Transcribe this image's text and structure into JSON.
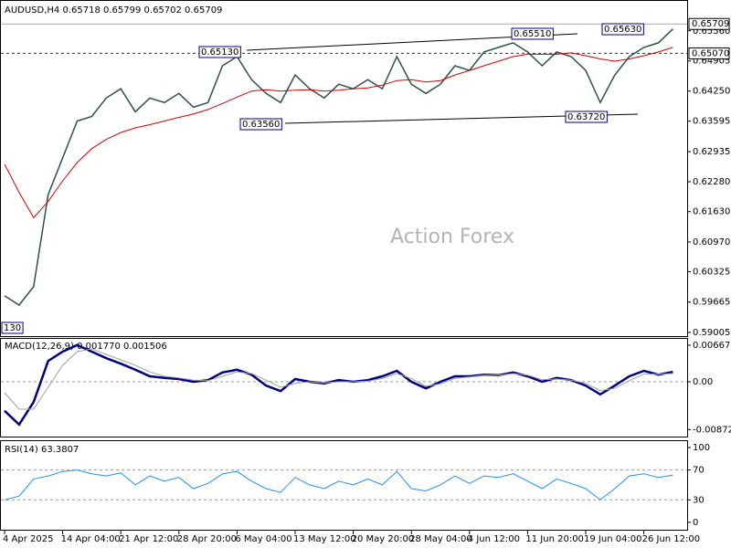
{
  "chart_data": [
    {
      "type": "line",
      "title": "AUDUSD,H4 0.65718 0.65799 0.65702 0.65709",
      "watermark": "Action Forex",
      "categories": [
        "4 Apr 2025",
        null,
        null,
        null,
        "14 Apr 04:00",
        null,
        null,
        null,
        "21 Apr 12:00",
        null,
        null,
        null,
        "28 Apr 20:00",
        null,
        null,
        null,
        "6 May 04:00",
        null,
        null,
        null,
        "13 May 12:00",
        null,
        null,
        null,
        "20 May 20:00",
        null,
        null,
        null,
        "28 May 04:00",
        null,
        null,
        null,
        "4 Jun 12:00",
        null,
        null,
        null,
        "11 Jun 20:00",
        null,
        null,
        null,
        "19 Jun 04:00",
        null,
        null,
        null,
        "26 Jun 12:00",
        null,
        null
      ],
      "series": [
        {
          "name": "AUDUSD",
          "color": "#2f4f4f",
          "values": [
            0.598,
            0.596,
            0.6,
            0.62,
            0.628,
            0.636,
            0.637,
            0.641,
            0.643,
            0.638,
            0.641,
            0.64,
            0.642,
            0.639,
            0.64,
            0.648,
            0.65,
            0.645,
            0.642,
            0.64,
            0.646,
            0.643,
            0.641,
            0.644,
            0.643,
            0.645,
            0.643,
            0.65,
            0.644,
            0.642,
            0.644,
            0.648,
            0.647,
            0.651,
            0.652,
            0.653,
            0.651,
            0.648,
            0.651,
            0.65,
            0.647,
            0.64,
            0.646,
            0.65,
            0.652,
            0.653,
            0.656
          ]
        },
        {
          "name": "MA",
          "color": "#d40000",
          "values": [
            0.6266,
            0.6205,
            0.615,
            0.6185,
            0.623,
            0.627,
            0.63,
            0.632,
            0.6335,
            0.6345,
            0.6352,
            0.636,
            0.6368,
            0.6375,
            0.6385,
            0.6398,
            0.6412,
            0.6425,
            0.6428,
            0.6425,
            0.6427,
            0.6428,
            0.6425,
            0.6427,
            0.643,
            0.6432,
            0.6438,
            0.6448,
            0.645,
            0.6445,
            0.6448,
            0.646,
            0.647,
            0.648,
            0.649,
            0.65,
            0.6505,
            0.6505,
            0.6505,
            0.6508,
            0.6502,
            0.6495,
            0.649,
            0.6495,
            0.6502,
            0.651,
            0.652
          ]
        }
      ],
      "ylim": [
        0.58925,
        0.6623
      ],
      "yticks": [
        {
          "value": 0.6556,
          "label": "0.65560"
        },
        {
          "value": 0.64905,
          "label": "0.64905"
        },
        {
          "value": 0.6425,
          "label": "0.64250"
        },
        {
          "value": 0.63595,
          "label": "0.63595"
        },
        {
          "value": 0.62935,
          "label": "0.62935"
        },
        {
          "value": 0.6228,
          "label": "0.62280"
        },
        {
          "value": 0.6163,
          "label": "0.61630"
        },
        {
          "value": 0.6097,
          "label": "0.60970"
        },
        {
          "value": 0.60325,
          "label": "0.60325"
        },
        {
          "value": 0.59665,
          "label": "0.59665"
        },
        {
          "value": 0.59005,
          "label": "0.59005"
        }
      ],
      "price_lines": [
        {
          "value": 0.65709,
          "label": "0.65709"
        },
        {
          "value": 0.6507,
          "label": "0.65070"
        }
      ],
      "annotations": [
        "0.65130",
        "0.63560",
        "0.65510",
        "0.65630",
        "0.63720",
        "130"
      ]
    },
    {
      "type": "line",
      "title": "MACD(12,26,9) 0.001770 0.001506",
      "series": [
        {
          "name": "MACD",
          "color": "#000080",
          "values": [
            -0.0053,
            -0.0078,
            -0.0037,
            0.0038,
            0.0055,
            0.0067,
            0.0055,
            0.0043,
            0.0033,
            0.0022,
            0.001,
            0.0007,
            0.0005,
            0,
            0.0003,
            0.0017,
            0.0022,
            0.0013,
            -0.0007,
            -0.0017,
            0.0005,
            0,
            -0.0003,
            0.0003,
            0,
            0.0003,
            0.001,
            0.002,
            0,
            -0.0012,
            0,
            0.001,
            0.001,
            0.0013,
            0.0012,
            0.0017,
            0.001,
            0,
            0.0007,
            0.0003,
            -0.0007,
            -0.0023,
            -0.0007,
            0.001,
            0.002,
            0.0013,
            0.0018
          ]
        },
        {
          "name": "Signal",
          "color": "#a0a0a0",
          "values": [
            -0.002,
            -0.005,
            -0.005,
            -0.001,
            0.003,
            0.0055,
            0.006,
            0.005,
            0.004,
            0.003,
            0.0018,
            0.001,
            0.0007,
            0.0003,
            0.0002,
            0.001,
            0.0018,
            0.0015,
            0.0003,
            -0.001,
            -0.0003,
            0,
            -0.0002,
            0,
            0,
            0.0001,
            0.0006,
            0.0015,
            0.0006,
            -0.0008,
            -0.0004,
            0.0006,
            0.0009,
            0.0012,
            0.0012,
            0.0015,
            0.0012,
            0.0004,
            0.0005,
            0.0003,
            -0.0003,
            -0.0016,
            -0.0012,
            0.0002,
            0.0014,
            0.0014,
            0.0015
          ]
        }
      ],
      "ylim": [
        -0.01001,
        0.00784
      ],
      "yticks": [
        0.006675,
        {
          "value": 0,
          "label": "0.00"
        },
        -0.008724
      ],
      "levels": [
        0
      ]
    },
    {
      "type": "line",
      "title": "RSI(14) 63.3807",
      "series": [
        {
          "name": "RSI",
          "color": "#1e90ff",
          "values": [
            30,
            35,
            58,
            62,
            68,
            70,
            65,
            62,
            66,
            50,
            62,
            55,
            60,
            45,
            52,
            65,
            68,
            55,
            45,
            40,
            60,
            50,
            45,
            55,
            50,
            58,
            50,
            68,
            45,
            42,
            50,
            62,
            52,
            62,
            60,
            65,
            55,
            45,
            58,
            52,
            45,
            30,
            45,
            62,
            65,
            60,
            63
          ]
        }
      ],
      "ylim": [
        -10,
        108.6
      ],
      "yticks": [
        100,
        70,
        30,
        0
      ],
      "levels": [
        70,
        30
      ]
    }
  ]
}
